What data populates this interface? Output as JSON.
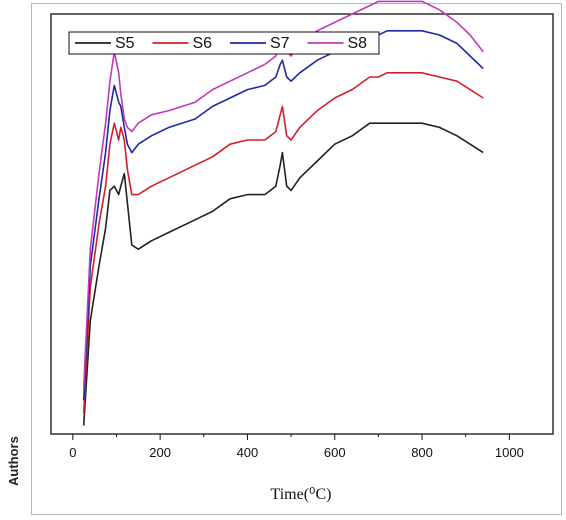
{
  "side_label": "Authors",
  "chart_data": {
    "type": "line",
    "title": "",
    "xlabel": "Time(⁰C)",
    "ylabel": "",
    "xlim": [
      -50,
      1100
    ],
    "ylim": [
      0,
      100
    ],
    "x_ticks": [
      0,
      200,
      400,
      600,
      800,
      1000
    ],
    "y_ticks": [],
    "grid": false,
    "legend_position": "top-left",
    "x": [
      25,
      40,
      60,
      75,
      85,
      95,
      105,
      110,
      118,
      125,
      135,
      150,
      180,
      220,
      280,
      320,
      360,
      400,
      440,
      465,
      475,
      480,
      490,
      500,
      520,
      560,
      600,
      640,
      680,
      700,
      720,
      760,
      800,
      840,
      880,
      910,
      940
    ],
    "series": [
      {
        "name": "S5",
        "color": "#222222",
        "values": [
          2,
          27,
          40,
          49,
          58,
          59,
          57,
          59,
          62,
          55,
          45,
          44,
          46,
          48,
          51,
          53,
          56,
          57,
          57,
          59,
          64,
          67,
          59,
          58,
          61,
          65,
          69,
          71,
          74,
          74,
          74,
          74,
          74,
          73,
          71,
          69,
          67
        ]
      },
      {
        "name": "S6",
        "color": "#d0222a",
        "values": [
          5,
          35,
          50,
          59,
          69,
          74,
          70,
          73,
          70,
          63,
          57,
          57,
          59,
          61,
          64,
          66,
          69,
          70,
          70,
          72,
          76,
          78,
          71,
          70,
          73,
          77,
          80,
          82,
          85,
          85,
          86,
          86,
          86,
          85,
          84,
          82,
          80
        ]
      },
      {
        "name": "S7",
        "color": "#1c2aa6",
        "values": [
          8,
          40,
          56,
          67,
          77,
          83,
          79,
          78,
          73,
          69,
          67,
          69,
          71,
          73,
          75,
          78,
          80,
          82,
          83,
          85,
          88,
          89,
          85,
          84,
          86,
          89,
          91,
          93,
          95,
          95,
          96,
          96,
          96,
          95,
          93,
          90,
          87
        ]
      },
      {
        "name": "S8",
        "color": "#c23ab8",
        "values": [
          11,
          44,
          62,
          74,
          84,
          91,
          86,
          81,
          75,
          73,
          72,
          74,
          76,
          77,
          79,
          82,
          84,
          86,
          88,
          90,
          93,
          94,
          91,
          90,
          93,
          96,
          98,
          100,
          102,
          103,
          103,
          103,
          103,
          101,
          98,
          95,
          91
        ]
      }
    ]
  }
}
